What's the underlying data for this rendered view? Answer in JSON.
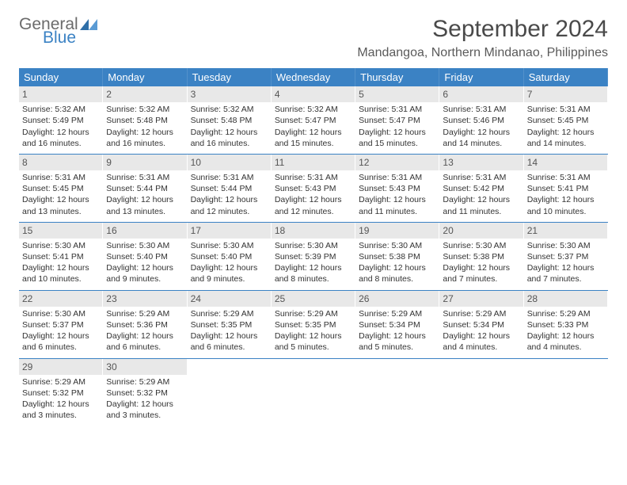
{
  "logo": {
    "text1": "General",
    "text2": "Blue",
    "icon_color": "#2f6fa8"
  },
  "title": "September 2024",
  "location": "Mandangoa, Northern Mindanao, Philippines",
  "colors": {
    "header_bg": "#3b82c4",
    "daynum_bg": "#e8e8e8",
    "border": "#3b82c4",
    "text": "#333333"
  },
  "day_names": [
    "Sunday",
    "Monday",
    "Tuesday",
    "Wednesday",
    "Thursday",
    "Friday",
    "Saturday"
  ],
  "weeks": [
    [
      {
        "n": "1",
        "sr": "Sunrise: 5:32 AM",
        "ss": "Sunset: 5:49 PM",
        "d1": "Daylight: 12 hours",
        "d2": "and 16 minutes."
      },
      {
        "n": "2",
        "sr": "Sunrise: 5:32 AM",
        "ss": "Sunset: 5:48 PM",
        "d1": "Daylight: 12 hours",
        "d2": "and 16 minutes."
      },
      {
        "n": "3",
        "sr": "Sunrise: 5:32 AM",
        "ss": "Sunset: 5:48 PM",
        "d1": "Daylight: 12 hours",
        "d2": "and 16 minutes."
      },
      {
        "n": "4",
        "sr": "Sunrise: 5:32 AM",
        "ss": "Sunset: 5:47 PM",
        "d1": "Daylight: 12 hours",
        "d2": "and 15 minutes."
      },
      {
        "n": "5",
        "sr": "Sunrise: 5:31 AM",
        "ss": "Sunset: 5:47 PM",
        "d1": "Daylight: 12 hours",
        "d2": "and 15 minutes."
      },
      {
        "n": "6",
        "sr": "Sunrise: 5:31 AM",
        "ss": "Sunset: 5:46 PM",
        "d1": "Daylight: 12 hours",
        "d2": "and 14 minutes."
      },
      {
        "n": "7",
        "sr": "Sunrise: 5:31 AM",
        "ss": "Sunset: 5:45 PM",
        "d1": "Daylight: 12 hours",
        "d2": "and 14 minutes."
      }
    ],
    [
      {
        "n": "8",
        "sr": "Sunrise: 5:31 AM",
        "ss": "Sunset: 5:45 PM",
        "d1": "Daylight: 12 hours",
        "d2": "and 13 minutes."
      },
      {
        "n": "9",
        "sr": "Sunrise: 5:31 AM",
        "ss": "Sunset: 5:44 PM",
        "d1": "Daylight: 12 hours",
        "d2": "and 13 minutes."
      },
      {
        "n": "10",
        "sr": "Sunrise: 5:31 AM",
        "ss": "Sunset: 5:44 PM",
        "d1": "Daylight: 12 hours",
        "d2": "and 12 minutes."
      },
      {
        "n": "11",
        "sr": "Sunrise: 5:31 AM",
        "ss": "Sunset: 5:43 PM",
        "d1": "Daylight: 12 hours",
        "d2": "and 12 minutes."
      },
      {
        "n": "12",
        "sr": "Sunrise: 5:31 AM",
        "ss": "Sunset: 5:43 PM",
        "d1": "Daylight: 12 hours",
        "d2": "and 11 minutes."
      },
      {
        "n": "13",
        "sr": "Sunrise: 5:31 AM",
        "ss": "Sunset: 5:42 PM",
        "d1": "Daylight: 12 hours",
        "d2": "and 11 minutes."
      },
      {
        "n": "14",
        "sr": "Sunrise: 5:31 AM",
        "ss": "Sunset: 5:41 PM",
        "d1": "Daylight: 12 hours",
        "d2": "and 10 minutes."
      }
    ],
    [
      {
        "n": "15",
        "sr": "Sunrise: 5:30 AM",
        "ss": "Sunset: 5:41 PM",
        "d1": "Daylight: 12 hours",
        "d2": "and 10 minutes."
      },
      {
        "n": "16",
        "sr": "Sunrise: 5:30 AM",
        "ss": "Sunset: 5:40 PM",
        "d1": "Daylight: 12 hours",
        "d2": "and 9 minutes."
      },
      {
        "n": "17",
        "sr": "Sunrise: 5:30 AM",
        "ss": "Sunset: 5:40 PM",
        "d1": "Daylight: 12 hours",
        "d2": "and 9 minutes."
      },
      {
        "n": "18",
        "sr": "Sunrise: 5:30 AM",
        "ss": "Sunset: 5:39 PM",
        "d1": "Daylight: 12 hours",
        "d2": "and 8 minutes."
      },
      {
        "n": "19",
        "sr": "Sunrise: 5:30 AM",
        "ss": "Sunset: 5:38 PM",
        "d1": "Daylight: 12 hours",
        "d2": "and 8 minutes."
      },
      {
        "n": "20",
        "sr": "Sunrise: 5:30 AM",
        "ss": "Sunset: 5:38 PM",
        "d1": "Daylight: 12 hours",
        "d2": "and 7 minutes."
      },
      {
        "n": "21",
        "sr": "Sunrise: 5:30 AM",
        "ss": "Sunset: 5:37 PM",
        "d1": "Daylight: 12 hours",
        "d2": "and 7 minutes."
      }
    ],
    [
      {
        "n": "22",
        "sr": "Sunrise: 5:30 AM",
        "ss": "Sunset: 5:37 PM",
        "d1": "Daylight: 12 hours",
        "d2": "and 6 minutes."
      },
      {
        "n": "23",
        "sr": "Sunrise: 5:29 AM",
        "ss": "Sunset: 5:36 PM",
        "d1": "Daylight: 12 hours",
        "d2": "and 6 minutes."
      },
      {
        "n": "24",
        "sr": "Sunrise: 5:29 AM",
        "ss": "Sunset: 5:35 PM",
        "d1": "Daylight: 12 hours",
        "d2": "and 6 minutes."
      },
      {
        "n": "25",
        "sr": "Sunrise: 5:29 AM",
        "ss": "Sunset: 5:35 PM",
        "d1": "Daylight: 12 hours",
        "d2": "and 5 minutes."
      },
      {
        "n": "26",
        "sr": "Sunrise: 5:29 AM",
        "ss": "Sunset: 5:34 PM",
        "d1": "Daylight: 12 hours",
        "d2": "and 5 minutes."
      },
      {
        "n": "27",
        "sr": "Sunrise: 5:29 AM",
        "ss": "Sunset: 5:34 PM",
        "d1": "Daylight: 12 hours",
        "d2": "and 4 minutes."
      },
      {
        "n": "28",
        "sr": "Sunrise: 5:29 AM",
        "ss": "Sunset: 5:33 PM",
        "d1": "Daylight: 12 hours",
        "d2": "and 4 minutes."
      }
    ],
    [
      {
        "n": "29",
        "sr": "Sunrise: 5:29 AM",
        "ss": "Sunset: 5:32 PM",
        "d1": "Daylight: 12 hours",
        "d2": "and 3 minutes."
      },
      {
        "n": "30",
        "sr": "Sunrise: 5:29 AM",
        "ss": "Sunset: 5:32 PM",
        "d1": "Daylight: 12 hours",
        "d2": "and 3 minutes."
      },
      null,
      null,
      null,
      null,
      null
    ]
  ]
}
